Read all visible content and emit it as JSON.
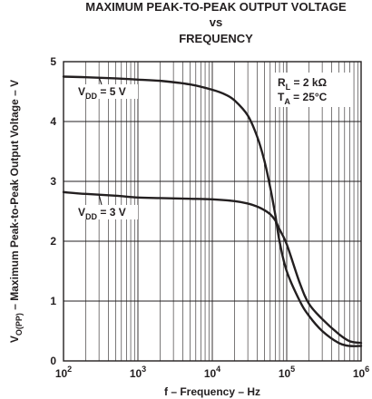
{
  "chart_data": {
    "type": "line",
    "title": [
      "MAXIMUM PEAK-TO-PEAK OUTPUT VOLTAGE",
      "vs",
      "FREQUENCY"
    ],
    "xlabel": "f – Frequency – Hz",
    "ylabel_parts": {
      "main": "V",
      "sub": "O(PP)",
      "rest": " – Maximum Peak-to-Peak Output Voltage – V"
    },
    "xscale": "log",
    "xlim": [
      100,
      1000000
    ],
    "ylim": [
      0,
      5
    ],
    "grid": true,
    "x_ticks": [
      {
        "base": "10",
        "exp": "2"
      },
      {
        "base": "10",
        "exp": "3"
      },
      {
        "base": "10",
        "exp": "4"
      },
      {
        "base": "10",
        "exp": "5"
      },
      {
        "base": "10",
        "exp": "6"
      }
    ],
    "y_ticks": [
      "0",
      "1",
      "2",
      "3",
      "4",
      "5"
    ],
    "annotation": {
      "line1": {
        "main": "R",
        "sub": "L",
        "rest": " = 2 kΩ"
      },
      "line2": {
        "main": "T",
        "sub": "A",
        "rest": " = 25°C"
      }
    },
    "series": [
      {
        "name": "VDD = 5 V",
        "label_parts": {
          "main": "V",
          "sub": "DD",
          "rest": " = 5 V"
        },
        "x": [
          100,
          200,
          500,
          1000,
          2000,
          5000,
          10000,
          15000,
          20000,
          30000,
          40000,
          50000,
          60000,
          70000,
          80000,
          100000,
          150000,
          200000,
          300000,
          500000,
          700000,
          1000000
        ],
        "y": [
          4.75,
          4.74,
          4.72,
          4.7,
          4.68,
          4.62,
          4.53,
          4.45,
          4.35,
          4.1,
          3.75,
          3.35,
          2.9,
          2.45,
          2.0,
          1.5,
          1.0,
          0.75,
          0.5,
          0.3,
          0.25,
          0.25
        ]
      },
      {
        "name": "VDD = 3 V",
        "label_parts": {
          "main": "V",
          "sub": "DD",
          "rest": " = 3 V"
        },
        "x": [
          100,
          200,
          500,
          1000,
          2000,
          5000,
          10000,
          20000,
          30000,
          40000,
          50000,
          60000,
          70000,
          80000,
          100000,
          150000,
          200000,
          300000,
          500000,
          700000,
          1000000
        ],
        "y": [
          2.82,
          2.79,
          2.76,
          2.73,
          2.72,
          2.71,
          2.7,
          2.67,
          2.63,
          2.58,
          2.52,
          2.45,
          2.35,
          2.2,
          1.95,
          1.3,
          0.95,
          0.7,
          0.45,
          0.33,
          0.3
        ]
      }
    ]
  }
}
